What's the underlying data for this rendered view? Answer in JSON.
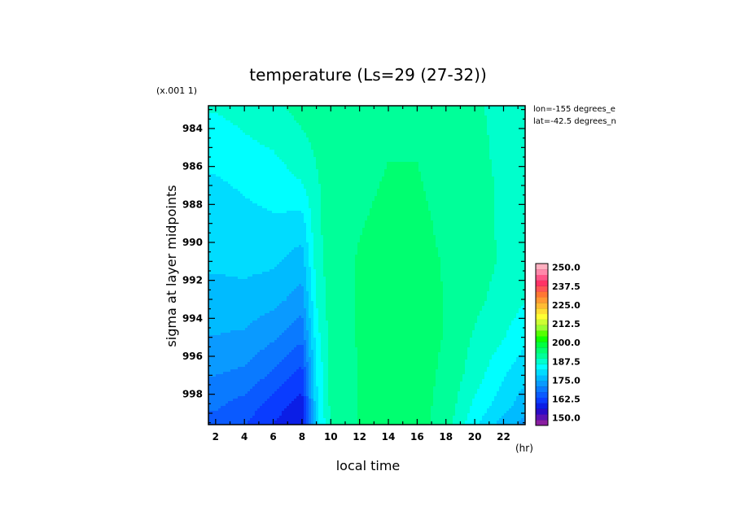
{
  "chart_data": {
    "type": "heatmap",
    "title": "temperature (Ls=29 (27-32))",
    "xlabel": "local time",
    "ylabel": "sigma at layer midpoints",
    "x_unit": "(hr)",
    "y_scale_note": "(x.001 1)",
    "info_lines": [
      "lon=-155 degrees_e",
      "lat=-42.5 degrees_n"
    ],
    "xlim": [
      1.5,
      23.5
    ],
    "ylim": [
      999.6,
      982.8
    ],
    "x_ticks": [
      2,
      4,
      6,
      8,
      10,
      12,
      14,
      16,
      18,
      20,
      22
    ],
    "y_ticks": [
      984,
      986,
      988,
      990,
      992,
      994,
      996,
      998
    ],
    "colorbar": {
      "min": 145,
      "max": 252.5,
      "labels": [
        "250.0",
        "237.5",
        "225.0",
        "212.5",
        "200.0",
        "187.5",
        "175.0",
        "162.5",
        "150.0"
      ],
      "colors": [
        "#8a1ea0",
        "#5a12b4",
        "#2a0cc8",
        "#0b1ee6",
        "#0a3cff",
        "#0a5aff",
        "#0a7aff",
        "#0a9aff",
        "#00bbff",
        "#00dcff",
        "#00ffff",
        "#00ffcc",
        "#00ff99",
        "#00ff70",
        "#00ff40",
        "#11ff00",
        "#55ff00",
        "#99ff33",
        "#ccff33",
        "#ffff33",
        "#ffdd33",
        "#ffbb33",
        "#ff9933",
        "#ff7733",
        "#ff5555",
        "#ff3366",
        "#ff5588",
        "#ff88aa",
        "#ffb0c0"
      ]
    },
    "x": [
      2,
      4,
      6,
      8,
      9,
      10,
      12,
      14,
      16,
      18,
      20,
      22,
      23.5
    ],
    "y": [
      983,
      985,
      987,
      989,
      991,
      993,
      995,
      997,
      998.5,
      999.5
    ],
    "z": [
      [
        186,
        187,
        188.5,
        190.5,
        191,
        191.5,
        192,
        192,
        192,
        191,
        190,
        188.5,
        187.5
      ],
      [
        183.5,
        185,
        186,
        188.5,
        190,
        191,
        192,
        193,
        193,
        192,
        190.5,
        188.5,
        187.5
      ],
      [
        181.5,
        182.5,
        183.5,
        185.5,
        189,
        191,
        192.5,
        193.5,
        193.5,
        192,
        190.5,
        189,
        188
      ],
      [
        180.5,
        181,
        181.5,
        180.5,
        188.5,
        191.5,
        193,
        194,
        194,
        192.5,
        190.5,
        189,
        188
      ],
      [
        179,
        179.5,
        179,
        176.5,
        187.5,
        191.5,
        193.5,
        194,
        194,
        193,
        191,
        189,
        187.5
      ],
      [
        177,
        177,
        176,
        173,
        186,
        191.5,
        193.5,
        194.5,
        194.5,
        193,
        190.5,
        188,
        186
      ],
      [
        174.5,
        174,
        171.5,
        168,
        184,
        191,
        193.5,
        194.5,
        194.5,
        193,
        189,
        186,
        183
      ],
      [
        171,
        170,
        166.5,
        162,
        182,
        190.5,
        193.5,
        194.5,
        194.5,
        192.5,
        187.5,
        182.5,
        179
      ],
      [
        168,
        166,
        162,
        158,
        181,
        190.5,
        193.5,
        194.5,
        194.5,
        192,
        185,
        180,
        176.5
      ],
      [
        166,
        164,
        160,
        156,
        180,
        190,
        193.5,
        194.5,
        194.5,
        191.5,
        183,
        177,
        173.5
      ]
    ]
  }
}
